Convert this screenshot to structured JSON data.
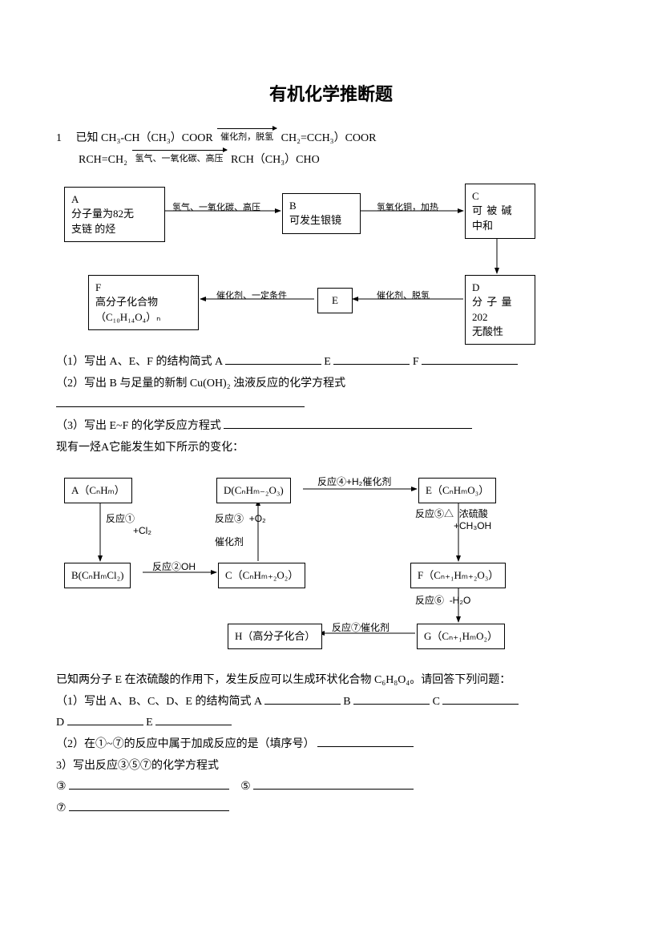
{
  "title": "有机化学推断题",
  "q1": {
    "num": "1",
    "eq1_left": "已知 CH₃-CH（CH₃）COOR",
    "eq1_cond": "催化剂，脱氢",
    "eq1_right": "CH₂=CCH₃）COOR",
    "eq2_left": "RCH=CH₂",
    "eq2_cond": "氢气、一氧化碳、高压",
    "eq2_right": "RCH（CH₃）CHO",
    "boxA_l1": "A",
    "boxA_l2": "分子量为82无",
    "boxA_l3": "支链 的烃",
    "boxB_l1": "B",
    "boxB_l2": "可发生银镜",
    "boxC_l1": "C",
    "boxC_l2": "可 被 碱",
    "boxC_l3": "中和",
    "boxD_l1": "D",
    "boxD_l2": "分 子 量",
    "boxD_l3": "202",
    "boxD_l4": "无酸性",
    "boxE": "E",
    "boxF_l1": "F",
    "boxF_l2": "高分子化合物",
    "boxF_l3": "（C₁₀H₁₄O₄）ₙ",
    "cond_AB": "氢气、一氧化碳、高压",
    "cond_BC": "氢氧化铜，加热",
    "cond_DE": "催化剂、脱氢",
    "cond_EF": "催化剂、一定条件",
    "p1_a": "（1）写出 A、E、F 的结构简式 A",
    "p1_e": "E",
    "p1_f": "F",
    "p2": "（2）写出 B 与足量的新制 Cu(OH)₂ 浊液反应的化学方程式",
    "p3": "（3）写出 E~F 的化学反应方程式"
  },
  "q2": {
    "intro": "现有一烃A它能发生如下所示的变化：",
    "A": "A（CₙHₘ）",
    "B": "B(CₙHₘCl₂)",
    "C": "C（CₙHₘ₊₂O₂）",
    "D": "D(CₙHₘ₋₂O₃)",
    "E": "E（CₙHₘO₃）",
    "F": "F（Cₙ₊₁Hₘ₊₂O₃）",
    "G": "G（Cₙ₊₁HₘO₂）",
    "H": "H（高分子化合）",
    "r1": "反应①",
    "r1b": "+Cl₂",
    "r2": "反应②OH",
    "r3": "反应③",
    "r3b": "+O₂",
    "r3c": "催化剂",
    "r4": "反应④+H₂催化剂",
    "r5": "反应⑤△",
    "r5b": "浓硫酸",
    "r5c": "+CH₃OH",
    "r6": "反应⑥",
    "r6b": "-H₂O",
    "r7": "反应⑦催化剂",
    "after": "已知两分子 E 在浓硫酸的作用下，发生反应可以生成环状化合物 C₆H₈O₄。请回答下列问题：",
    "p1_a": "（1）写出 A、B、C、D、E 的结构简式 A",
    "p1_b": "B",
    "p1_c": "C",
    "p1_d": "D",
    "p1_e": "E",
    "p2": "（2）在①~⑦的反应中属于加成反应的是（填序号）",
    "p3": "3）写出反应③⑤⑦的化学方程式",
    "c3": "③",
    "c5": "⑤",
    "c7": "⑦"
  },
  "style": {
    "blank_short": "95px",
    "blank_med": "120px",
    "blank_long": "200px",
    "blank_full": "310px"
  }
}
